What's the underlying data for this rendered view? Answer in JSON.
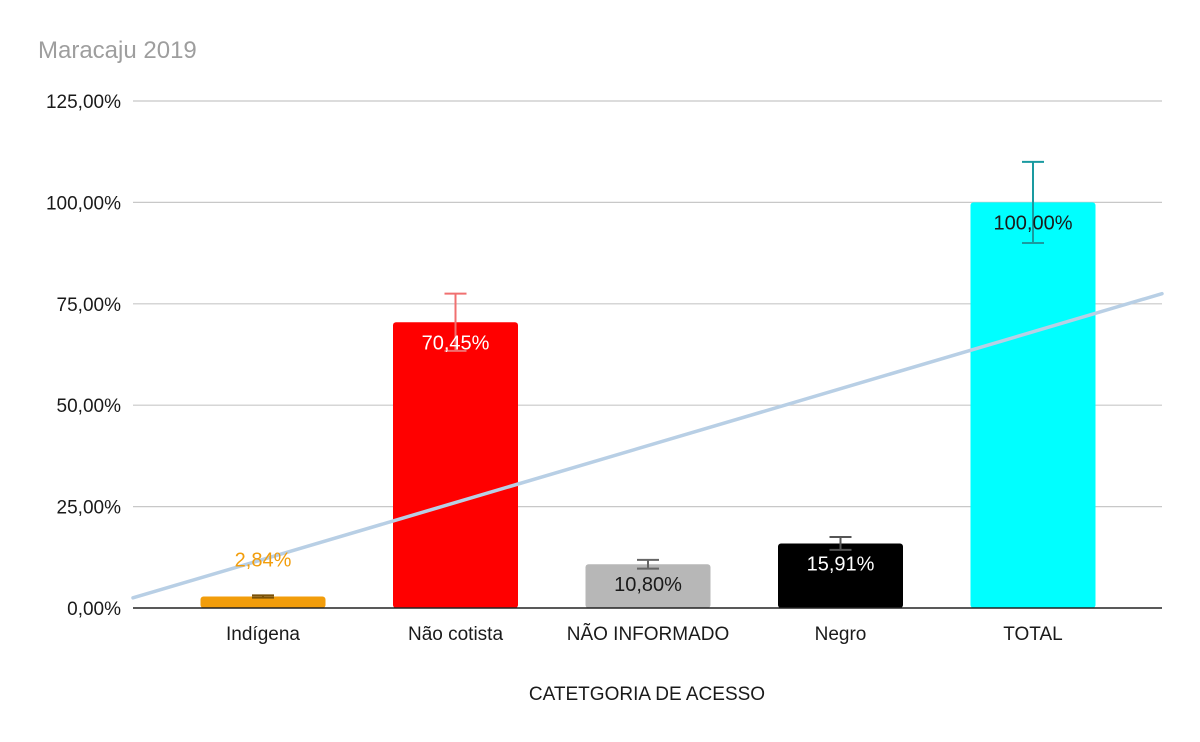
{
  "chart_data": {
    "type": "bar",
    "title": "Maracaju 2019",
    "xlabel": "CATETGORIA DE ACESSO",
    "ylabel": "",
    "ylim": [
      0,
      125
    ],
    "y_ticks": [
      0,
      25,
      50,
      75,
      100,
      125
    ],
    "y_tick_labels": [
      "0,00%",
      "25,00%",
      "50,00%",
      "75,00%",
      "100,00%",
      "125,00%"
    ],
    "grid": true,
    "legend": "none",
    "categories": [
      "Indígena",
      "Não cotista",
      "NÃO INFORMADO",
      "Negro",
      "TOTAL"
    ],
    "values": [
      2.84,
      70.45,
      10.8,
      15.91,
      100.0
    ],
    "data_labels": [
      "2,84%",
      "70,45%",
      "10,80%",
      "15,91%",
      "100,00%"
    ],
    "bar_colors": [
      "#f29d0b",
      "#ff0000",
      "#b7b7b7",
      "#000000",
      "#00ffff"
    ],
    "label_colors": [
      "#f29d0b",
      "#ffffff",
      "#1a1a1a",
      "#ffffff",
      "#1a1a1a"
    ],
    "error_bars": [
      0.284,
      7.045,
      1.08,
      1.591,
      10.0
    ],
    "error_bar_colors": [
      "#7a5208",
      "#f07070",
      "#666666",
      "#555555",
      "#1a9aa0"
    ],
    "trendline": {
      "type": "linear",
      "color": "#b8cfe5",
      "y_at_left_edge": 2.5,
      "y_at_right_edge": 77.5
    }
  }
}
